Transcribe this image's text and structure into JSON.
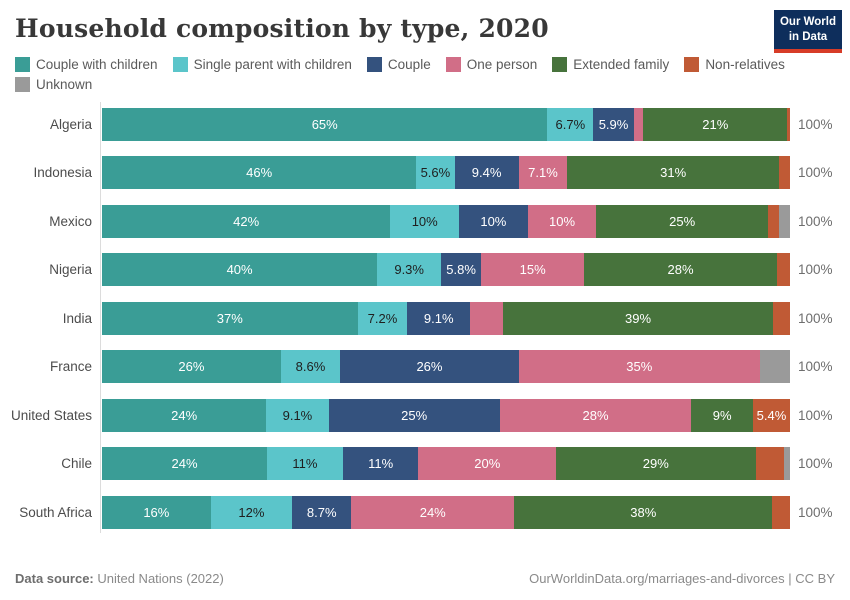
{
  "header": {
    "title": "Household composition by type, 2020"
  },
  "logo": {
    "line1": "Our World",
    "line2": "in Data",
    "bg_color": "#0E2E5C",
    "accent_color": "#D73C28"
  },
  "legend": {
    "items": [
      {
        "label": "Couple with children",
        "color": "#3A9D96"
      },
      {
        "label": "Single parent with children",
        "color": "#5BC5CA"
      },
      {
        "label": "Couple",
        "color": "#34527E"
      },
      {
        "label": "One person",
        "color": "#D16E87"
      },
      {
        "label": "Extended family",
        "color": "#47733C"
      },
      {
        "label": "Non-relatives",
        "color": "#C05A35"
      },
      {
        "label": "Unknown",
        "color": "#9A9A9A"
      }
    ]
  },
  "chart_data": {
    "type": "bar",
    "stacked": true,
    "orientation": "horizontal",
    "unit": "%",
    "xlim": [
      0,
      100
    ],
    "total_label": "100%",
    "series_names": [
      "Couple with children",
      "Single parent with children",
      "Couple",
      "One person",
      "Extended family",
      "Non-relatives",
      "Unknown"
    ],
    "series_colors": [
      "#3A9D96",
      "#5BC5CA",
      "#34527E",
      "#D16E87",
      "#47733C",
      "#C05A35",
      "#9A9A9A"
    ],
    "dark_label_series": [
      1
    ],
    "rows": [
      {
        "country": "Algeria",
        "values": [
          65,
          6.7,
          5.9,
          1.4,
          21,
          0.4,
          0
        ],
        "labels": [
          "65%",
          "6.7%",
          "5.9%",
          "",
          "21%",
          "",
          ""
        ]
      },
      {
        "country": "Indonesia",
        "values": [
          46,
          5.6,
          9.4,
          7.1,
          31,
          1.6,
          0
        ],
        "labels": [
          "46%",
          "5.6%",
          "9.4%",
          "7.1%",
          "31%",
          "",
          ""
        ]
      },
      {
        "country": "Mexico",
        "values": [
          42,
          10,
          10,
          10,
          25,
          1.6,
          1.6
        ],
        "labels": [
          "42%",
          "10%",
          "10%",
          "10%",
          "25%",
          "",
          ""
        ]
      },
      {
        "country": "Nigeria",
        "values": [
          40,
          9.3,
          5.8,
          15,
          28,
          1.9,
          0
        ],
        "labels": [
          "40%",
          "9.3%",
          "5.8%",
          "15%",
          "28%",
          "",
          ""
        ]
      },
      {
        "country": "India",
        "values": [
          37,
          7.2,
          9.1,
          4.8,
          39,
          2.5,
          0
        ],
        "labels": [
          "37%",
          "7.2%",
          "9.1%",
          "",
          "39%",
          "",
          ""
        ]
      },
      {
        "country": "France",
        "values": [
          26,
          8.6,
          26,
          35,
          0,
          0,
          4.4
        ],
        "labels": [
          "26%",
          "8.6%",
          "26%",
          "35%",
          "",
          "",
          ""
        ]
      },
      {
        "country": "United States",
        "values": [
          24,
          9.1,
          25,
          28,
          9,
          5.4,
          0
        ],
        "labels": [
          "24%",
          "9.1%",
          "25%",
          "28%",
          "9%",
          "5.4%",
          ""
        ]
      },
      {
        "country": "Chile",
        "values": [
          24,
          11,
          11,
          20,
          29,
          4.1,
          0.9
        ],
        "labels": [
          "24%",
          "11%",
          "11%",
          "20%",
          "29%",
          "",
          ""
        ]
      },
      {
        "country": "South Africa",
        "values": [
          16,
          12,
          8.7,
          24,
          38,
          2.6,
          0
        ],
        "labels": [
          "16%",
          "12%",
          "8.7%",
          "24%",
          "38%",
          "",
          ""
        ]
      }
    ]
  },
  "footer": {
    "source_label": "Data source:",
    "source_text": " United Nations (2022)",
    "credit": "OurWorldinData.org/marriages-and-divorces | CC BY"
  }
}
